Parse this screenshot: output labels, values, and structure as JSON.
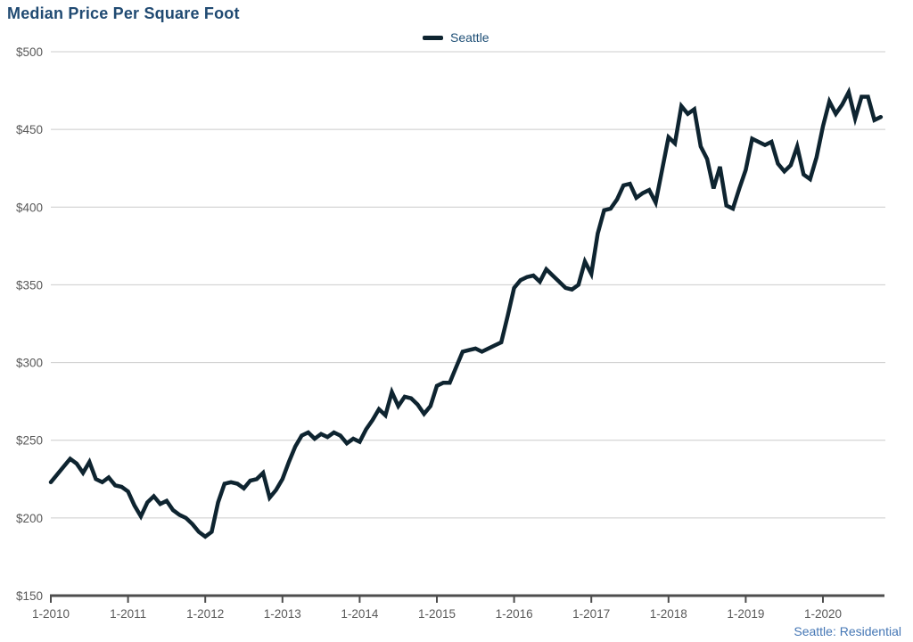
{
  "header": {
    "title": "Median Price Per Square Foot"
  },
  "legend": {
    "label": "Seattle"
  },
  "footer": {
    "text": "Seattle: Residential"
  },
  "colors": {
    "title": "#204a72",
    "legend_text": "#1d4e75",
    "footer_text": "#4577b5",
    "line": "#0e2430",
    "grid": "#cccccc",
    "axis": "#4d4d4d",
    "axis_text": "#595959"
  },
  "chart_data": {
    "type": "line",
    "title": "Median Price Per Square Foot",
    "grid": "horizontal",
    "legend_position": "top-center",
    "x_axis": {
      "tick_labels": [
        "1-2010",
        "1-2011",
        "1-2012",
        "1-2013",
        "1-2014",
        "1-2015",
        "1-2016",
        "1-2017",
        "1-2018",
        "1-2019",
        "1-2020"
      ],
      "frequency": "monthly",
      "start": "1-2010",
      "end": "10-2020"
    },
    "y_axis": {
      "min": 150,
      "max": 500,
      "ticks": [
        150,
        200,
        250,
        300,
        350,
        400,
        450,
        500
      ],
      "tick_labels": [
        "$150",
        "$200",
        "$250",
        "$300",
        "$350",
        "$400",
        "$450",
        "$500"
      ]
    },
    "series": [
      {
        "name": "Seattle",
        "values": [
          223,
          228,
          233,
          238,
          235,
          229,
          236,
          225,
          223,
          226,
          221,
          220,
          217,
          208,
          201,
          210,
          214,
          209,
          211,
          205,
          202,
          200,
          196,
          191,
          188,
          191,
          210,
          222,
          223,
          222,
          219,
          224,
          225,
          229,
          213,
          218,
          225,
          236,
          246,
          253,
          255,
          251,
          254,
          252,
          255,
          253,
          248,
          251,
          249,
          257,
          263,
          270,
          266,
          281,
          272,
          278,
          277,
          273,
          267,
          272,
          285,
          287,
          287,
          297,
          307,
          308,
          309,
          307,
          309,
          311,
          313,
          330,
          348,
          353,
          355,
          356,
          352,
          360,
          356,
          352,
          348,
          347,
          350,
          365,
          357,
          383,
          398,
          399,
          405,
          414,
          415,
          406,
          409,
          411,
          403,
          424,
          445,
          441,
          465,
          460,
          463,
          439,
          431,
          412,
          426,
          401,
          399,
          412,
          424,
          444,
          442,
          440,
          442,
          428,
          423,
          427,
          439,
          421,
          418,
          432,
          452,
          468,
          460,
          466,
          474,
          457,
          471,
          471,
          456,
          458
        ]
      }
    ]
  }
}
